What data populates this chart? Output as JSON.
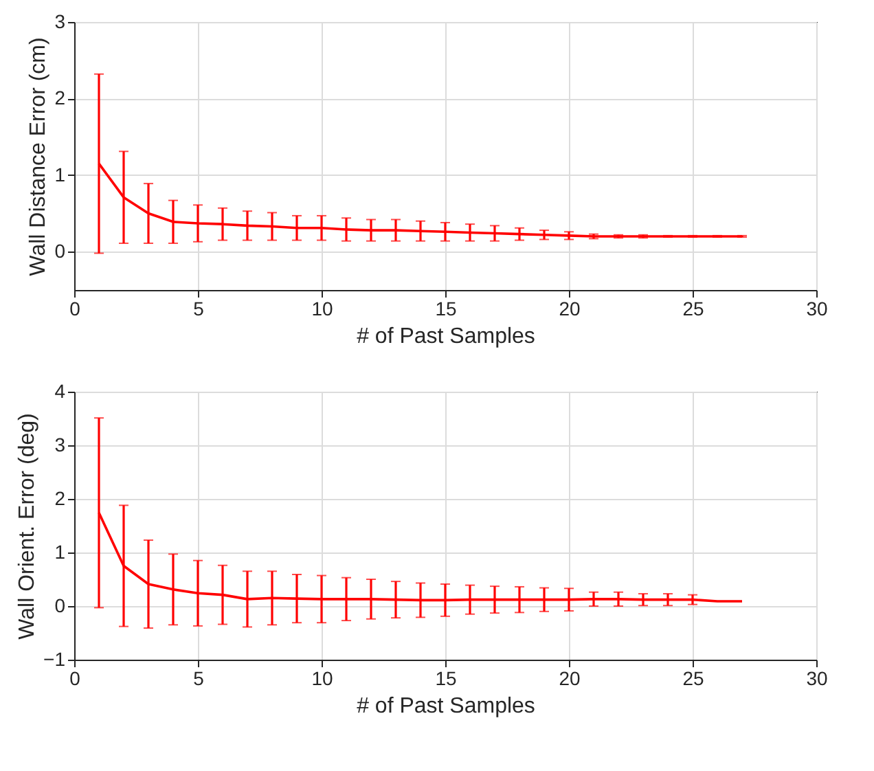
{
  "chart_data": [
    {
      "type": "line",
      "xlabel": "# of Past Samples",
      "ylabel": "Wall Distance Error (cm)",
      "x": [
        1,
        2,
        3,
        4,
        5,
        6,
        7,
        8,
        9,
        10,
        11,
        12,
        13,
        14,
        15,
        16,
        17,
        18,
        19,
        20,
        21,
        22,
        23,
        24,
        25,
        26,
        27
      ],
      "series": [
        {
          "color": "#ff0000",
          "values": [
            1.15,
            0.71,
            0.5,
            0.39,
            0.37,
            0.36,
            0.34,
            0.33,
            0.31,
            0.31,
            0.29,
            0.28,
            0.28,
            0.27,
            0.26,
            0.25,
            0.24,
            0.23,
            0.22,
            0.21,
            0.2,
            0.2,
            0.2,
            0.2,
            0.2,
            0.2,
            0.2
          ],
          "errors": [
            1.17,
            0.6,
            0.39,
            0.28,
            0.24,
            0.21,
            0.19,
            0.18,
            0.16,
            0.16,
            0.15,
            0.14,
            0.14,
            0.13,
            0.12,
            0.11,
            0.1,
            0.08,
            0.06,
            0.05,
            0.03,
            0.02,
            0.02,
            0.01,
            0.01,
            0.01,
            0.01
          ]
        }
      ],
      "xlim": [
        0,
        30
      ],
      "xticks": [
        0,
        5,
        10,
        15,
        20,
        25,
        30
      ],
      "ylim": [
        -0.5,
        3
      ],
      "yticks": [
        0,
        1,
        2,
        3
      ],
      "grid": true,
      "marker": "none"
    },
    {
      "type": "line",
      "xlabel": "# of Past Samples",
      "ylabel": "Wall Orient. Error (deg)",
      "x": [
        1,
        2,
        3,
        4,
        5,
        6,
        7,
        8,
        9,
        10,
        11,
        12,
        13,
        14,
        15,
        16,
        17,
        18,
        19,
        20,
        21,
        22,
        23,
        24,
        25,
        26,
        27
      ],
      "series": [
        {
          "color": "#ff0000",
          "values": [
            1.74,
            0.75,
            0.41,
            0.31,
            0.24,
            0.21,
            0.13,
            0.15,
            0.14,
            0.13,
            0.13,
            0.13,
            0.12,
            0.11,
            0.11,
            0.12,
            0.12,
            0.12,
            0.12,
            0.12,
            0.13,
            0.13,
            0.12,
            0.12,
            0.12,
            0.09,
            0.09
          ],
          "errors": [
            1.77,
            1.13,
            0.82,
            0.66,
            0.61,
            0.55,
            0.52,
            0.5,
            0.45,
            0.44,
            0.4,
            0.37,
            0.34,
            0.32,
            0.3,
            0.27,
            0.25,
            0.24,
            0.22,
            0.21,
            0.13,
            0.13,
            0.11,
            0.11,
            0.09,
            null,
            null
          ]
        }
      ],
      "xlim": [
        0,
        30
      ],
      "xticks": [
        0,
        5,
        10,
        15,
        20,
        25,
        30
      ],
      "ylim": [
        -1,
        4
      ],
      "yticks": [
        -1,
        0,
        1,
        2,
        3,
        4
      ],
      "grid": true,
      "marker": "none"
    }
  ]
}
